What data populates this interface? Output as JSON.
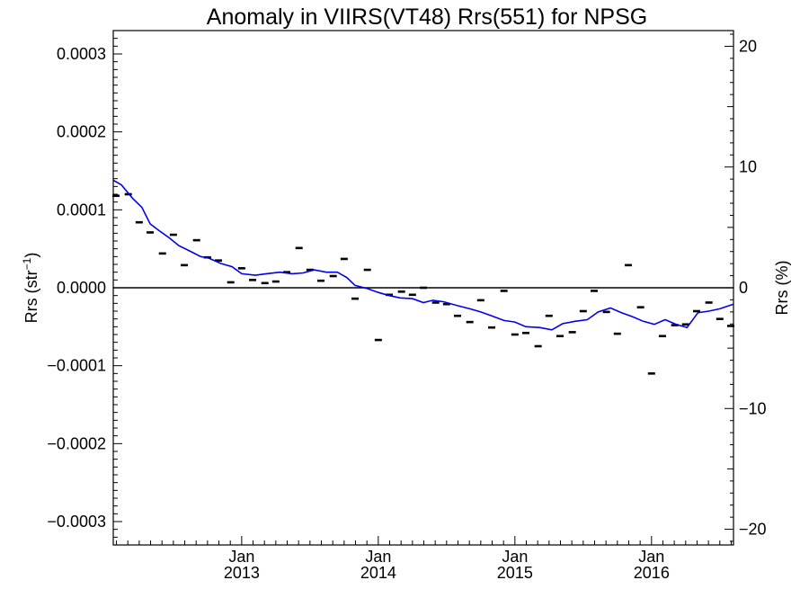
{
  "chart_data": {
    "type": "line",
    "title": "Anomaly in VIIRS(VT48) Rrs(551) for NPSG",
    "ylabel": "Rrs (str",
    "ylabel_sup": "−1",
    "ylabel_close": ")",
    "y2label": "Rrs (%)",
    "ylim": [
      -0.00033,
      0.00033
    ],
    "y2lim": [
      -21.3,
      21.3
    ],
    "xlim": [
      2012.06,
      2016.6
    ],
    "y_ticks": [
      {
        "value": 0.0003,
        "label": "0.0003"
      },
      {
        "value": 0.0002,
        "label": "0.0002"
      },
      {
        "value": 0.0001,
        "label": "0.0001"
      },
      {
        "value": 0.0,
        "label": "0.0000"
      },
      {
        "value": -0.0001,
        "label": "−0.0001"
      },
      {
        "value": -0.0002,
        "label": "−0.0002"
      },
      {
        "value": -0.0003,
        "label": "−0.0003"
      }
    ],
    "y2_ticks": [
      {
        "value": 20,
        "label": "20"
      },
      {
        "value": 10,
        "label": "10"
      },
      {
        "value": 0,
        "label": "0"
      },
      {
        "value": -10,
        "label": "−10"
      },
      {
        "value": -20,
        "label": "−20"
      }
    ],
    "x_ticks": [
      {
        "value": 2013.0,
        "month": "Jan",
        "year": "2013"
      },
      {
        "value": 2014.0,
        "month": "Jan",
        "year": "2014"
      },
      {
        "value": 2015.0,
        "month": "Jan",
        "year": "2015"
      },
      {
        "value": 2016.0,
        "month": "Jan",
        "year": "2016"
      }
    ],
    "zero_line": true,
    "grid": false,
    "series": [
      {
        "marker": "dash",
        "color": "#000000",
        "x": [
          2012.08,
          2012.17,
          2012.25,
          2012.33,
          2012.42,
          2012.5,
          2012.58,
          2012.67,
          2012.75,
          2012.83,
          2012.92,
          2013.0,
          2013.08,
          2013.17,
          2013.25,
          2013.33,
          2013.42,
          2013.5,
          2013.58,
          2013.67,
          2013.75,
          2013.83,
          2013.92,
          2014.0,
          2014.08,
          2014.17,
          2014.25,
          2014.33,
          2014.42,
          2014.5,
          2014.58,
          2014.67,
          2014.75,
          2014.83,
          2014.92,
          2015.0,
          2015.08,
          2015.17,
          2015.25,
          2015.33,
          2015.42,
          2015.5,
          2015.58,
          2015.67,
          2015.75,
          2015.83,
          2015.92,
          2016.0,
          2016.08,
          2016.17,
          2016.25,
          2016.33,
          2016.42,
          2016.5,
          2016.58
        ],
        "values": [
          0.000118,
          0.00012,
          8.4e-05,
          7.1e-05,
          4.4e-05,
          6.8e-05,
          2.9e-05,
          6.1e-05,
          3.9e-05,
          3.5e-05,
          7e-06,
          2.5e-05,
          1e-05,
          6e-06,
          8e-06,
          2e-05,
          5.1e-05,
          2.3e-05,
          9e-06,
          1.5e-05,
          3.7e-05,
          -1.4e-05,
          2.3e-05,
          -6.7e-05,
          -9e-06,
          -5e-06,
          -9e-06,
          0.0,
          -1.9e-05,
          -2.1e-05,
          -3.6e-05,
          -4.4e-05,
          -1.6e-05,
          -5.1e-05,
          -4e-06,
          -6e-05,
          -5.8e-05,
          -7.5e-05,
          -3.6e-05,
          -6.2e-05,
          -5.7e-05,
          -3e-05,
          -4e-06,
          -3.1e-05,
          -5.9e-05,
          2.9e-05,
          -2.5e-05,
          -0.00011,
          -6.2e-05,
          -4.8e-05,
          -4.7e-05,
          -3e-05,
          -1.9e-05,
          -4e-05,
          -4.9e-05
        ]
      },
      {
        "marker": "line",
        "color": "#0000ee",
        "x": [
          2012.06,
          2012.12,
          2012.2,
          2012.27,
          2012.33,
          2012.39,
          2012.47,
          2012.54,
          2012.61,
          2012.7,
          2012.76,
          2012.85,
          2012.93,
          2013.0,
          2013.1,
          2013.18,
          2013.28,
          2013.37,
          2013.45,
          2013.53,
          2013.62,
          2013.7,
          2013.77,
          2013.83,
          2013.92,
          2014.0,
          2014.08,
          2014.16,
          2014.25,
          2014.33,
          2014.4,
          2014.48,
          2014.58,
          2014.67,
          2014.75,
          2014.83,
          2014.92,
          2015.0,
          2015.08,
          2015.18,
          2015.27,
          2015.35,
          2015.44,
          2015.53,
          2015.61,
          2015.7,
          2015.78,
          2015.86,
          2015.94,
          2016.02,
          2016.1,
          2016.18,
          2016.26,
          2016.34,
          2016.42,
          2016.5,
          2016.6
        ],
        "values": [
          0.000138,
          0.000132,
          0.000115,
          0.000103,
          8.2e-05,
          7.4e-05,
          6.4e-05,
          5.4e-05,
          4.8e-05,
          4e-05,
          3.8e-05,
          3.1e-05,
          2.7e-05,
          1.8e-05,
          1.6e-05,
          1.8e-05,
          2e-05,
          1.8e-05,
          1.9e-05,
          2.3e-05,
          2e-05,
          2e-05,
          1.3e-05,
          3e-06,
          -1e-06,
          -6e-06,
          -1e-05,
          -1.3e-05,
          -1.4e-05,
          -1.9e-05,
          -1.6e-05,
          -1.8e-05,
          -2.3e-05,
          -2.7e-05,
          -3.1e-05,
          -3.6e-05,
          -4.2e-05,
          -4.4e-05,
          -5e-05,
          -5.1e-05,
          -5.4e-05,
          -4.6e-05,
          -4.3e-05,
          -4.1e-05,
          -3.1e-05,
          -2.6e-05,
          -3.2e-05,
          -3.7e-05,
          -4.3e-05,
          -4.7e-05,
          -4.1e-05,
          -4.7e-05,
          -5.1e-05,
          -3.2e-05,
          -3e-05,
          -2.7e-05,
          -2.1e-05
        ]
      }
    ]
  }
}
